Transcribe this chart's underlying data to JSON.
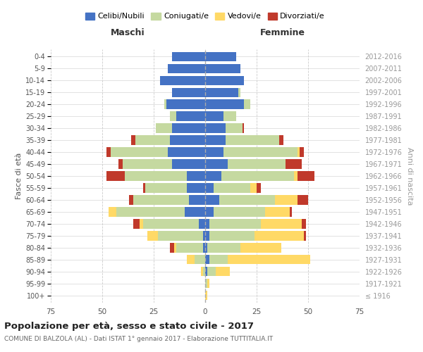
{
  "age_groups": [
    "100+",
    "95-99",
    "90-94",
    "85-89",
    "80-84",
    "75-79",
    "70-74",
    "65-69",
    "60-64",
    "55-59",
    "50-54",
    "45-49",
    "40-44",
    "35-39",
    "30-34",
    "25-29",
    "20-24",
    "15-19",
    "10-14",
    "5-9",
    "0-4"
  ],
  "birth_years": [
    "≤ 1916",
    "1917-1921",
    "1922-1926",
    "1927-1931",
    "1932-1936",
    "1937-1941",
    "1942-1946",
    "1947-1951",
    "1952-1956",
    "1957-1961",
    "1962-1966",
    "1967-1971",
    "1972-1976",
    "1977-1981",
    "1982-1986",
    "1987-1991",
    "1992-1996",
    "1997-2001",
    "2002-2006",
    "2007-2011",
    "2012-2016"
  ],
  "colors": {
    "celibi": "#4472c4",
    "coniugati": "#c5d9a0",
    "vedovi": "#ffd966",
    "divorziati": "#c0392b"
  },
  "males": {
    "celibi": [
      0,
      0,
      0,
      0,
      1,
      1,
      3,
      10,
      8,
      9,
      9,
      16,
      18,
      17,
      16,
      14,
      19,
      16,
      22,
      18,
      16
    ],
    "coniugati": [
      0,
      0,
      1,
      5,
      13,
      22,
      27,
      33,
      27,
      20,
      30,
      24,
      28,
      17,
      8,
      3,
      1,
      0,
      0,
      0,
      0
    ],
    "vedovi": [
      0,
      0,
      1,
      4,
      1,
      5,
      2,
      4,
      0,
      0,
      0,
      0,
      0,
      0,
      0,
      0,
      0,
      0,
      0,
      0,
      0
    ],
    "divorziati": [
      0,
      0,
      0,
      0,
      2,
      0,
      3,
      0,
      2,
      1,
      9,
      2,
      2,
      2,
      0,
      0,
      0,
      0,
      0,
      0,
      0
    ]
  },
  "females": {
    "celibi": [
      0,
      0,
      1,
      2,
      1,
      2,
      2,
      4,
      7,
      4,
      8,
      11,
      9,
      10,
      10,
      9,
      19,
      16,
      19,
      17,
      15
    ],
    "coniugati": [
      0,
      1,
      4,
      9,
      16,
      22,
      25,
      25,
      27,
      18,
      35,
      28,
      36,
      26,
      8,
      6,
      3,
      1,
      0,
      0,
      0
    ],
    "vedovi": [
      1,
      1,
      7,
      40,
      20,
      24,
      20,
      12,
      11,
      3,
      2,
      0,
      1,
      0,
      0,
      0,
      0,
      0,
      0,
      0,
      0
    ],
    "divorziati": [
      0,
      0,
      0,
      0,
      0,
      1,
      2,
      1,
      5,
      2,
      8,
      8,
      2,
      2,
      1,
      0,
      0,
      0,
      0,
      0,
      0
    ]
  },
  "title": "Popolazione per età, sesso e stato civile - 2017",
  "subtitle": "COMUNE DI BALZOLA (AL) - Dati ISTAT 1° gennaio 2017 - Elaborazione TUTTITALIA.IT",
  "xlabel_left": "Maschi",
  "xlabel_right": "Femmine",
  "ylabel_left": "Fasce di età",
  "ylabel_right": "Anni di nascita",
  "xlim": 75,
  "legend_labels": [
    "Celibi/Nubili",
    "Coniugati/e",
    "Vedovi/e",
    "Divorziati/e"
  ],
  "background_color": "#ffffff",
  "grid_color": "#cccccc"
}
